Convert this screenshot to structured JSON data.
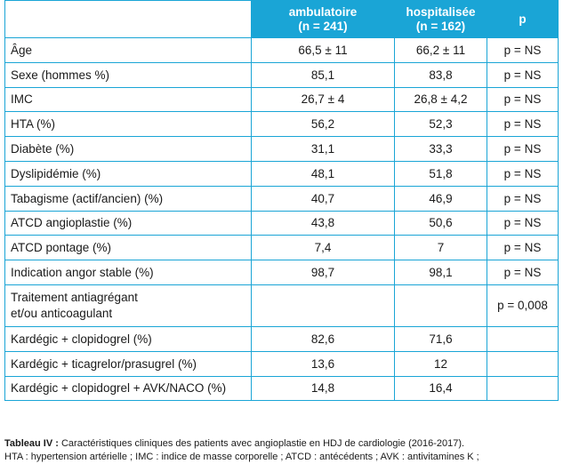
{
  "header": {
    "col1": "",
    "col2_line1": "ambulatoire",
    "col2_line2": "(n = 241)",
    "col3_line1": "hospitalisée",
    "col3_line2": "(n = 162)",
    "col4": "p"
  },
  "rows": [
    {
      "label": "Âge",
      "amb": "66,5 ± 11",
      "hosp": "66,2 ± 11",
      "p": "p = NS"
    },
    {
      "label": "Sexe (hommes %)",
      "amb": "85,1",
      "hosp": "83,8",
      "p": "p = NS"
    },
    {
      "label": "IMC",
      "amb": "26,7 ± 4",
      "hosp": "26,8 ± 4,2",
      "p": "p = NS"
    },
    {
      "label": "HTA (%)",
      "amb": "56,2",
      "hosp": "52,3",
      "p": "p = NS"
    },
    {
      "label": "Diabète (%)",
      "amb": "31,1",
      "hosp": "33,3",
      "p": "p = NS"
    },
    {
      "label": "Dyslipidémie (%)",
      "amb": "48,1",
      "hosp": "51,8",
      "p": "p = NS"
    },
    {
      "label": "Tabagisme (actif/ancien) (%)",
      "amb": "40,7",
      "hosp": "46,9",
      "p": "p = NS"
    },
    {
      "label": "ATCD angioplastie (%)",
      "amb": "43,8",
      "hosp": "50,6",
      "p": "p = NS"
    },
    {
      "label": "ATCD pontage (%)",
      "amb": "7,4",
      "hosp": "7",
      "p": "p = NS"
    },
    {
      "label": "Indication angor stable (%)",
      "amb": "98,7",
      "hosp": "98,1",
      "p": "p = NS"
    },
    {
      "label_line1": "Traitement antiagrégant",
      "label_line2": "et/ou anticoagulant",
      "amb": "",
      "hosp": "",
      "p": "p = 0,008"
    },
    {
      "label": "Kardégic + clopidogrel (%)",
      "amb": "82,6",
      "hosp": "71,6",
      "p": ""
    },
    {
      "label": "Kardégic + ticagrelor/prasugrel (%)",
      "amb": "13,6",
      "hosp": "12",
      "p": ""
    },
    {
      "label": "Kardégic + clopidogrel + AVK/NACO (%)",
      "amb": "14,8",
      "hosp": "16,4",
      "p": ""
    }
  ],
  "caption": {
    "label": "Tableau IV :",
    "text": " Caractéristiques cliniques des patients avec angioplastie en HDJ de cardiologie (2016-2017).",
    "line2": "HTA : hypertension artérielle ; IMC : indice de masse corporelle ; ATCD : antécédents ; AVK : antivitamines K ;"
  }
}
